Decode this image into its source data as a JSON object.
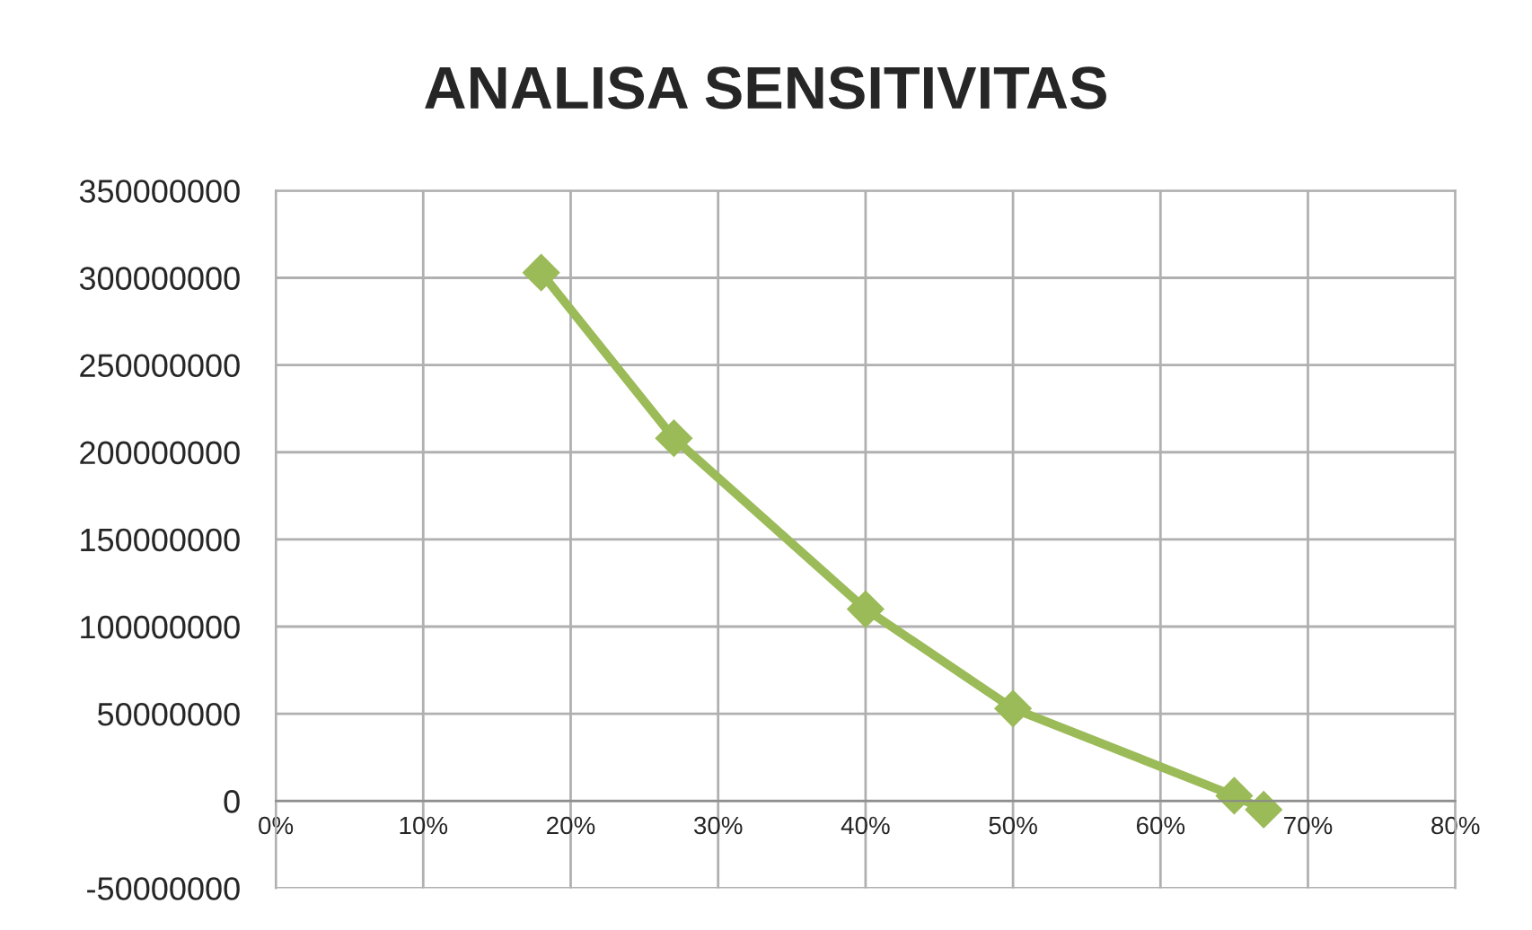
{
  "chart_data": {
    "type": "line",
    "title": "ANALISA SENSITIVITAS",
    "x": [
      0.18,
      0.27,
      0.4,
      0.5,
      0.65,
      0.67
    ],
    "series": [
      {
        "color": "#9bbb59",
        "values": [
          303000000,
          208000000,
          110000000,
          53000000,
          3000000,
          -5000000
        ]
      }
    ],
    "xlim": [
      0,
      0.8
    ],
    "xticks": [
      {
        "value": 0,
        "label": "0%"
      },
      {
        "value": 0.1,
        "label": "10%"
      },
      {
        "value": 0.2,
        "label": "20%"
      },
      {
        "value": 0.3,
        "label": "30%"
      },
      {
        "value": 0.4,
        "label": "40%"
      },
      {
        "value": 0.5,
        "label": "50%"
      },
      {
        "value": 0.6,
        "label": "60%"
      },
      {
        "value": 0.7,
        "label": "70%"
      },
      {
        "value": 0.8,
        "label": "80%"
      }
    ],
    "ylim": [
      -50000000,
      350000000
    ],
    "yticks": [
      -50000000,
      0,
      50000000,
      100000000,
      150000000,
      200000000,
      250000000,
      300000000,
      350000000
    ],
    "grid": true,
    "marker": "diamond",
    "line_style": "solid"
  }
}
